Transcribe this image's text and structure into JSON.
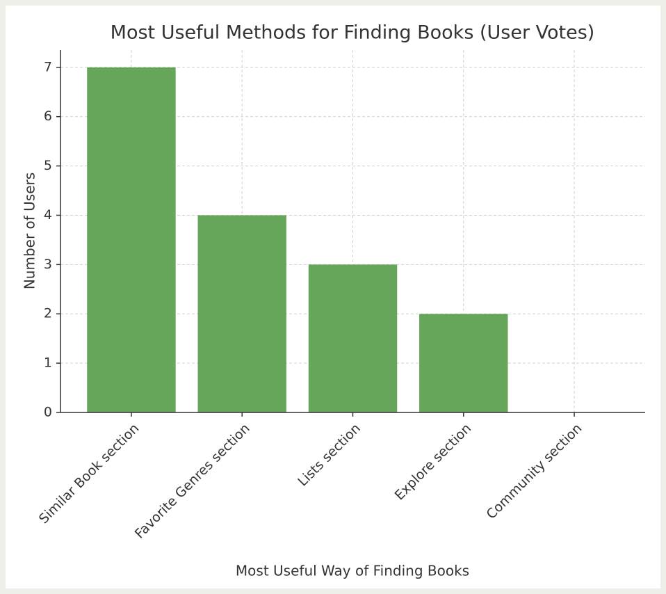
{
  "chart_data": {
    "type": "bar",
    "title": "Most Useful Methods for Finding Books (User Votes)",
    "x_label": "Most Useful Way of Finding Books",
    "y_label": "Number of Users",
    "categories": [
      "Similar Book section",
      "Favorite Genres section",
      "Lists section",
      "Explore section",
      "Community section"
    ],
    "values": [
      7,
      4,
      3,
      2,
      0
    ],
    "color": "#65a65a",
    "ylim": [
      0,
      7.35
    ],
    "yticks": [
      0,
      1,
      2,
      3,
      4,
      5,
      6,
      7
    ],
    "grid": true
  }
}
